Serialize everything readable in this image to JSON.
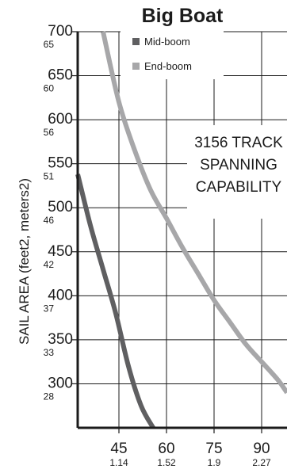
{
  "chart_data": {
    "type": "line",
    "title": "Big Boat",
    "ylabel": "SAIL AREA (feet2, meters2)",
    "xlabel": "",
    "xlim": [
      32,
      98
    ],
    "ylim": [
      250,
      700
    ],
    "x_ticks": [
      {
        "value": 45,
        "label": "45",
        "sublabel": "1.14"
      },
      {
        "value": 60,
        "label": "60",
        "sublabel": "1.52"
      },
      {
        "value": 75,
        "label": "75",
        "sublabel": "1.9"
      },
      {
        "value": 90,
        "label": "90",
        "sublabel": "2.27"
      }
    ],
    "y_ticks": [
      {
        "value": 700,
        "label": "700",
        "sublabel": "65"
      },
      {
        "value": 650,
        "label": "650",
        "sublabel": "60"
      },
      {
        "value": 600,
        "label": "600",
        "sublabel": "56"
      },
      {
        "value": 550,
        "label": "550",
        "sublabel": "51"
      },
      {
        "value": 500,
        "label": "500",
        "sublabel": "46"
      },
      {
        "value": 450,
        "label": "450",
        "sublabel": "42"
      },
      {
        "value": 400,
        "label": "400",
        "sublabel": "37"
      },
      {
        "value": 350,
        "label": "350",
        "sublabel": "33"
      },
      {
        "value": 300,
        "label": "300",
        "sublabel": "28"
      }
    ],
    "series": [
      {
        "name": "Mid-boom",
        "color": "#5f5f61",
        "x": [
          32.0,
          36.0,
          40.0,
          44.0,
          48.0,
          52.0,
          55.8
        ],
        "y": [
          538,
          480,
          430,
          380,
          320,
          275,
          250
        ]
      },
      {
        "name": "End-boom",
        "color": "#a7a7a9",
        "x": [
          40.0,
          45.0,
          50.0,
          55.0,
          60.0,
          65.0,
          70.0,
          75.0,
          80.0,
          85.0,
          90.0,
          95.0,
          98.0
        ],
        "y": [
          700,
          620,
          565,
          520,
          488,
          455,
          425,
          395,
          370,
          345,
          325,
          305,
          290
        ]
      }
    ],
    "annotation": [
      "3156 TRACK",
      "SPANNING",
      "CAPABILITY"
    ],
    "grid": true,
    "legend_position": "top-left"
  }
}
